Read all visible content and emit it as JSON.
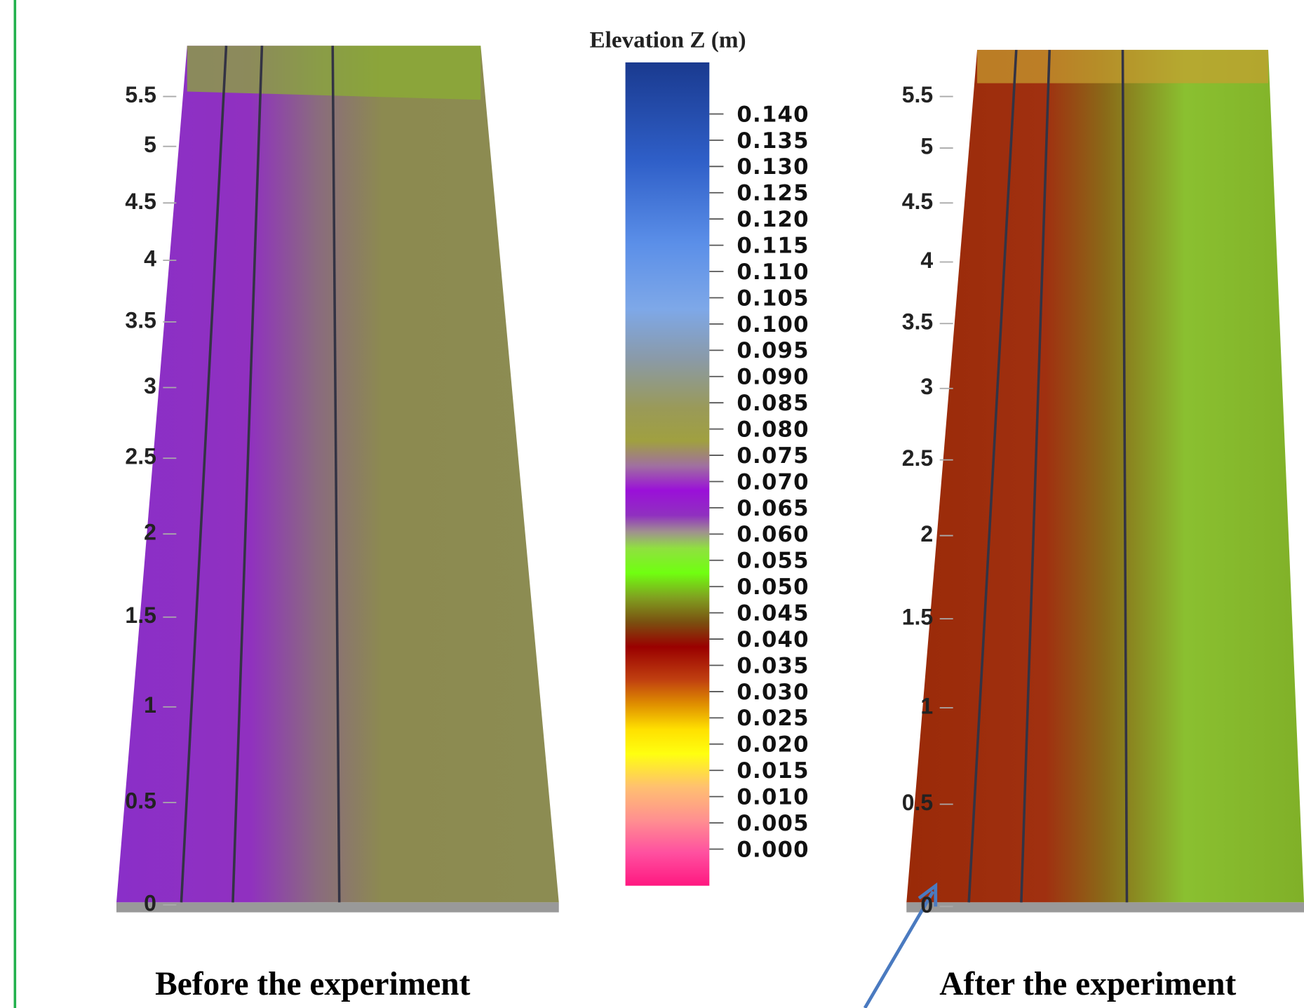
{
  "colorbar": {
    "title": "Elevation Z (m)",
    "labels": [
      "0.140",
      "0.135",
      "0.130",
      "0.125",
      "0.120",
      "0.115",
      "0.110",
      "0.105",
      "0.100",
      "0.095",
      "0.090",
      "0.085",
      "0.080",
      "0.075",
      "0.070",
      "0.065",
      "0.060",
      "0.055",
      "0.050",
      "0.045",
      "0.040",
      "0.035",
      "0.030",
      "0.025",
      "0.020",
      "0.015",
      "0.010",
      "0.005",
      "0.000"
    ]
  },
  "left_panel": {
    "axis_labels": [
      "5.5",
      "5",
      "4.5",
      "4",
      "3.5",
      "3",
      "2.5",
      "2",
      "1.5",
      "1",
      "0.5",
      "0"
    ],
    "caption": "Before the experiment"
  },
  "right_panel": {
    "axis_labels": [
      "5.5",
      "5",
      "4.5",
      "4",
      "3.5",
      "3",
      "2.5",
      "2",
      "1.5",
      "1",
      "0.5",
      "0"
    ],
    "caption": "After the experiment"
  }
}
